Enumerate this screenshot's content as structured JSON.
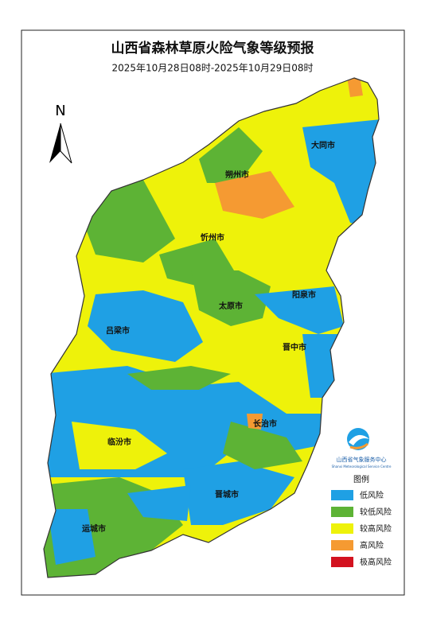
{
  "header": {
    "title": "山西省森林草原火险气象等级预报",
    "subtitle": "2025年10月28日08时-2025年10月29日08时"
  },
  "north_label": "N",
  "cities": [
    "大同市",
    "朔州市",
    "忻州市",
    "阳泉市",
    "太原市",
    "吕梁市",
    "晋中市",
    "长治市",
    "临汾市",
    "晋城市",
    "运城市"
  ],
  "logo": {
    "name": "山西省气象服务中心",
    "name_en": "Shanxi Meteorological Service Centre"
  },
  "legend": {
    "title": "图例",
    "items": [
      {
        "label": "低风险",
        "color": "#1fa0e4"
      },
      {
        "label": "较低风险",
        "color": "#5db335"
      },
      {
        "label": "较高风险",
        "color": "#eef20a"
      },
      {
        "label": "高风险",
        "color": "#f59a32"
      },
      {
        "label": "极高风险",
        "color": "#d3121f"
      }
    ]
  }
}
